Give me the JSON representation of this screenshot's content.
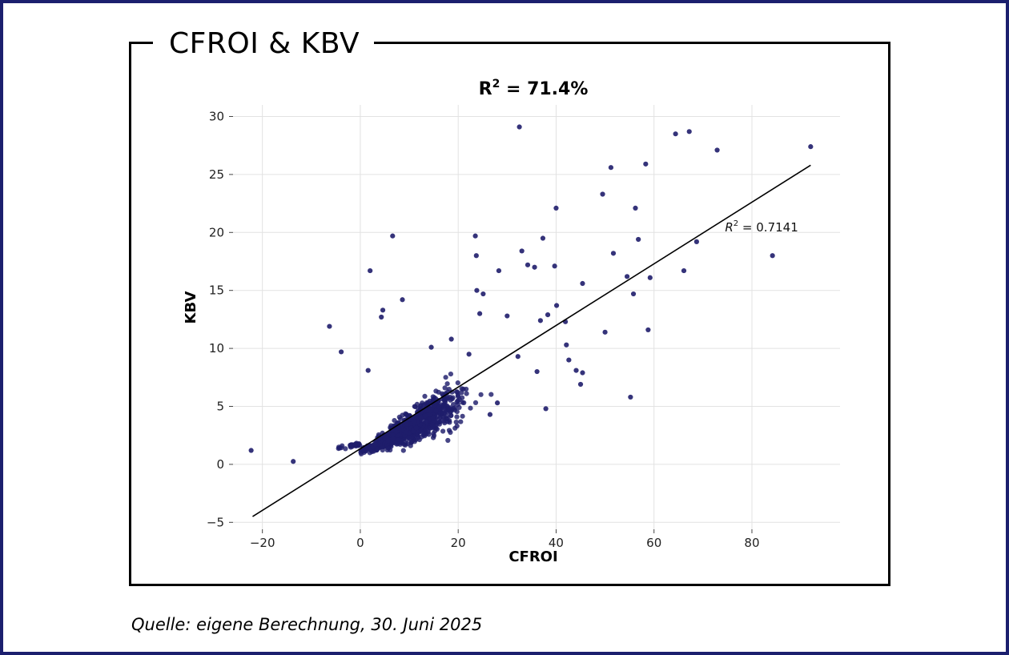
{
  "page_title": "CFROI & KBV",
  "caption": "Quelle: eigene Berechnung, 30. Juni 2025",
  "colors": {
    "point": "#1f1d6b",
    "frame": "#1b1f6e",
    "line": "#000000",
    "grid": "#e2e2e2"
  },
  "chart_data": {
    "type": "scatter",
    "title": "R² = 71.4%",
    "title_base": "R",
    "title_sup": "2",
    "title_rest": " = 71.4%",
    "xlabel": "CFROI",
    "ylabel": "KBV",
    "xlim": [
      -26,
      98
    ],
    "ylim": [
      -5.6,
      31
    ],
    "xticks": [
      -20,
      0,
      20,
      40,
      60,
      80
    ],
    "xtick_labels": [
      "−20",
      "0",
      "20",
      "40",
      "60",
      "80"
    ],
    "yticks": [
      -5,
      0,
      5,
      10,
      15,
      20,
      25,
      30
    ],
    "ytick_labels": [
      "−5",
      "0",
      "5",
      "10",
      "15",
      "20",
      "25",
      "30"
    ],
    "grid": true,
    "regression": {
      "x": [
        -22,
        92
      ],
      "y": [
        -4.5,
        25.8
      ]
    },
    "annotation": {
      "base": "R",
      "sup": "2",
      "rest": " = 0.7141",
      "x": 74.5,
      "y": 20.1
    },
    "outliers": [
      [
        -22.3,
        1.2
      ],
      [
        -13.7,
        0.25
      ],
      [
        -6.3,
        11.9
      ],
      [
        -3.9,
        9.7
      ],
      [
        1.6,
        8.1
      ],
      [
        2.0,
        16.7
      ],
      [
        4.3,
        12.7
      ],
      [
        4.6,
        13.3
      ],
      [
        6.6,
        19.7
      ],
      [
        8.6,
        14.2
      ],
      [
        14.5,
        10.1
      ],
      [
        18.6,
        10.8
      ],
      [
        22.2,
        9.5
      ],
      [
        23.5,
        19.7
      ],
      [
        23.7,
        18.0
      ],
      [
        23.8,
        15.0
      ],
      [
        24.4,
        13.0
      ],
      [
        25.1,
        14.7
      ],
      [
        26.5,
        4.3
      ],
      [
        28.0,
        5.3
      ],
      [
        28.3,
        16.7
      ],
      [
        30.0,
        12.8
      ],
      [
        32.2,
        9.3
      ],
      [
        32.5,
        29.1
      ],
      [
        33.0,
        18.4
      ],
      [
        34.2,
        17.2
      ],
      [
        35.6,
        17.0
      ],
      [
        36.1,
        8.0
      ],
      [
        36.8,
        12.4
      ],
      [
        37.3,
        19.5
      ],
      [
        37.9,
        4.8
      ],
      [
        38.3,
        12.9
      ],
      [
        39.7,
        17.1
      ],
      [
        40.0,
        22.1
      ],
      [
        40.1,
        13.7
      ],
      [
        41.9,
        12.3
      ],
      [
        42.1,
        10.3
      ],
      [
        42.6,
        9.0
      ],
      [
        44.1,
        8.1
      ],
      [
        45.0,
        6.9
      ],
      [
        45.4,
        7.9
      ],
      [
        45.4,
        15.6
      ],
      [
        49.5,
        23.3
      ],
      [
        50.0,
        11.4
      ],
      [
        51.2,
        25.6
      ],
      [
        51.7,
        18.2
      ],
      [
        54.5,
        16.2
      ],
      [
        55.2,
        5.8
      ],
      [
        55.8,
        14.7
      ],
      [
        56.2,
        22.1
      ],
      [
        56.8,
        19.4
      ],
      [
        58.3,
        25.9
      ],
      [
        58.8,
        11.6
      ],
      [
        59.2,
        16.1
      ],
      [
        64.4,
        28.5
      ],
      [
        66.1,
        16.7
      ],
      [
        67.2,
        28.7
      ],
      [
        68.7,
        19.2
      ],
      [
        72.9,
        27.1
      ],
      [
        84.2,
        18.0
      ],
      [
        92.0,
        27.4
      ]
    ],
    "cloud": {
      "description_note": "Dense cluster of roughly 1000 additional observations centred along the regression line",
      "n": 1000,
      "x_range": [
        -11,
        46
      ],
      "center_x": 10,
      "spread_x": 9
    }
  }
}
